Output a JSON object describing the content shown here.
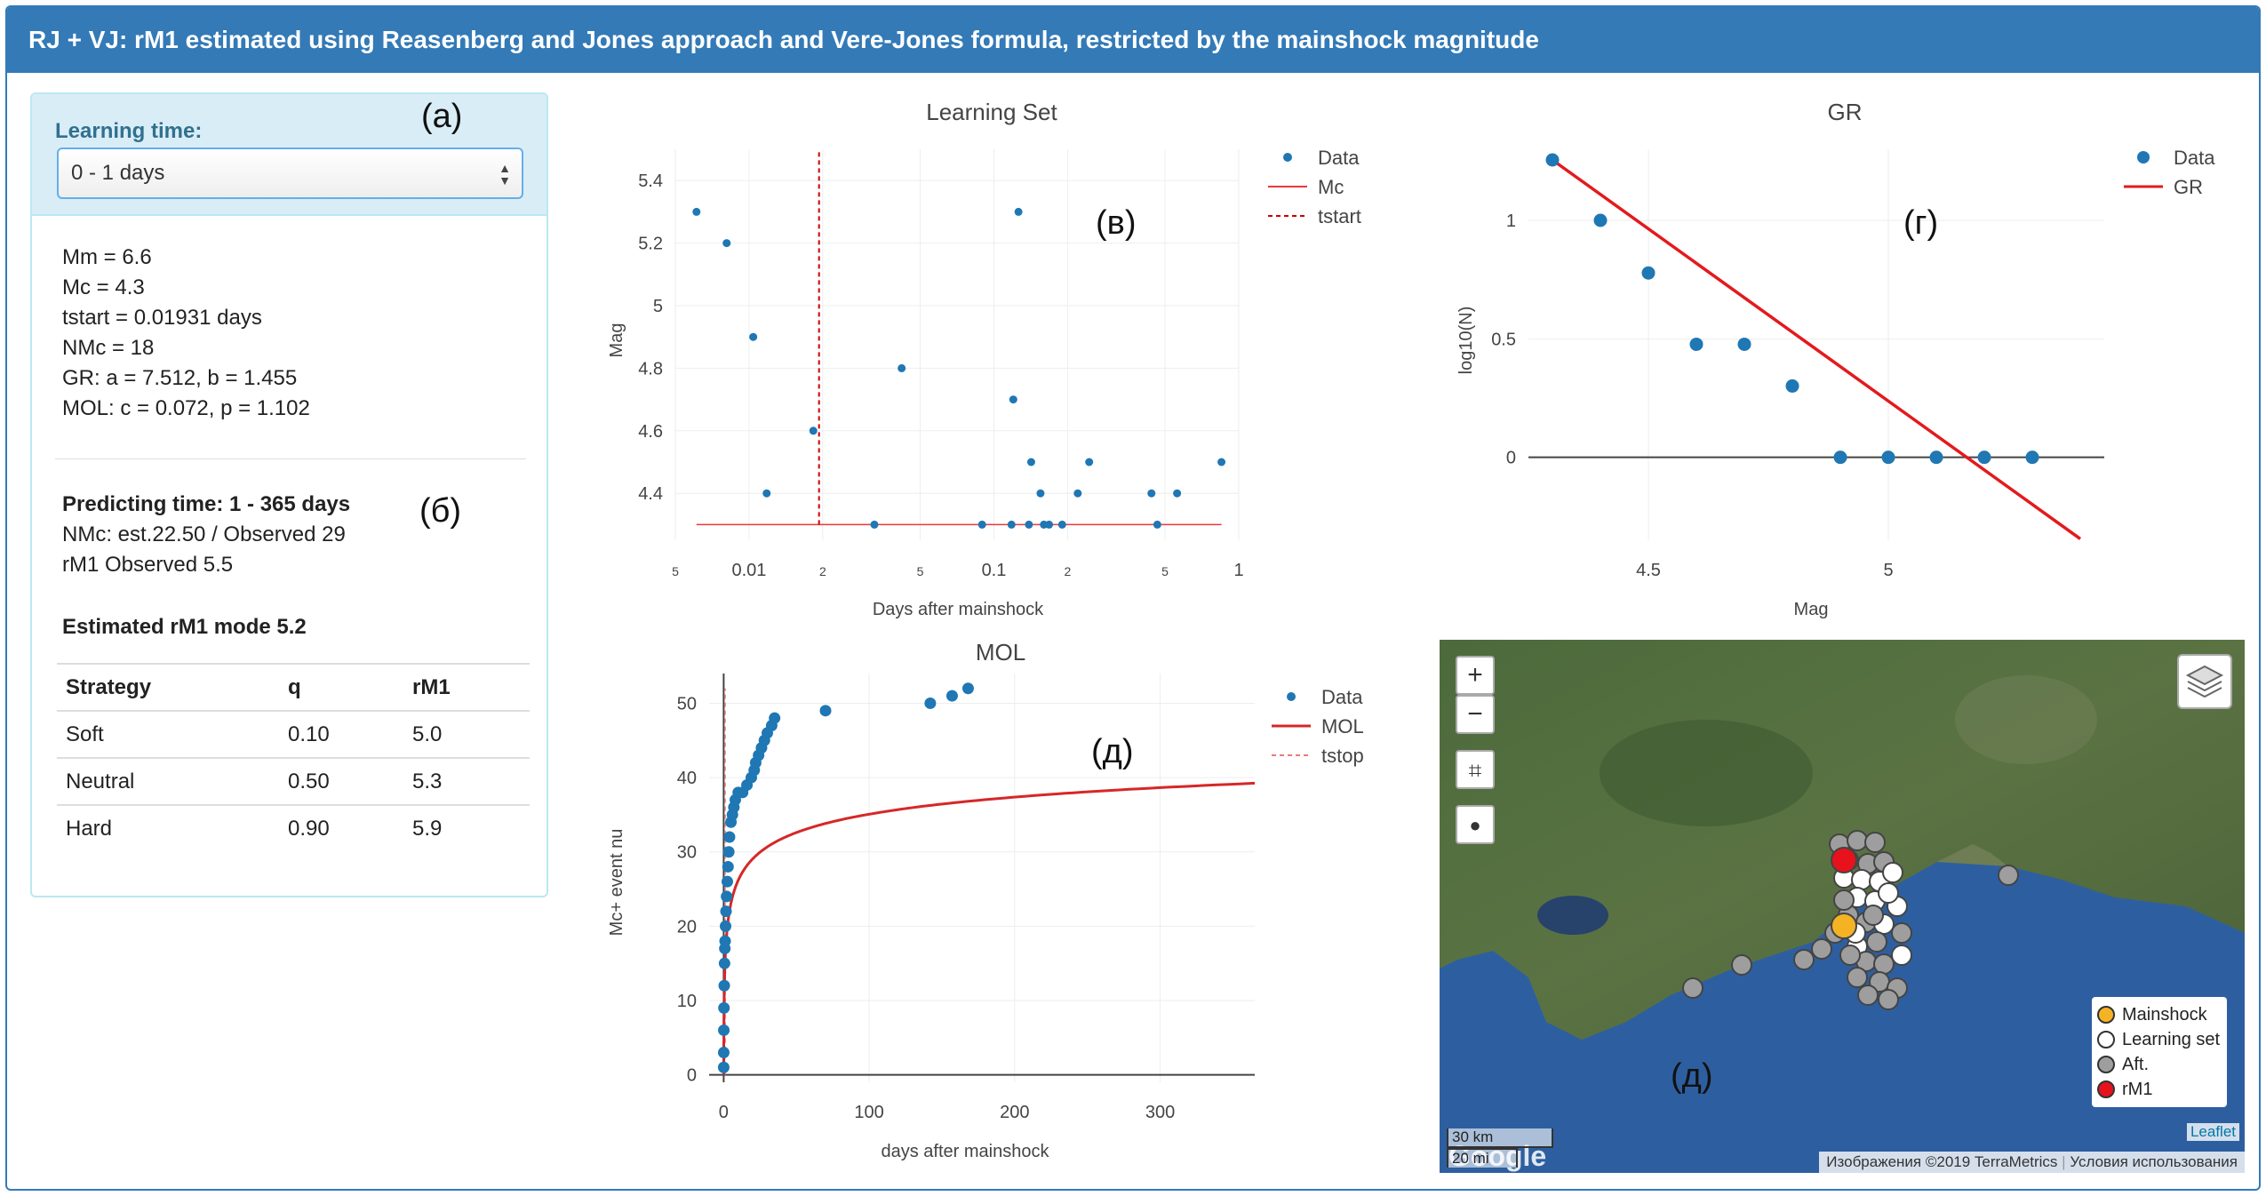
{
  "header": {
    "title": "RJ + VJ: rM1 estimated using Reasenberg and Jones approach and Vere-Jones formula, restricted by the mainshock magnitude"
  },
  "learning": {
    "label": "Learning time:",
    "selected": "0 - 1 days"
  },
  "annotations": {
    "a": "(а)",
    "b": "(б)",
    "v": "(в)",
    "g": "(г)",
    "d1": "(д)",
    "d2": "(д)"
  },
  "stats": {
    "mm": "Mm = 6.6",
    "mc": "Mc = 4.3",
    "tstart": "tstart = 0.01931 days",
    "nmc": "NMc = 18",
    "gr": "GR: a = 7.512, b = 1.455",
    "mol": "MOL: c = 0.072, p = 1.102"
  },
  "predicting": {
    "title": "Predicting time: 1 - 365 days",
    "nmc": "NMc: est.22.50 / Observed 29",
    "rm1": "rM1 Observed 5.5",
    "estimated": "Estimated rM1 mode 5.2"
  },
  "table": {
    "headers": [
      "Strategy",
      "q",
      "rM1"
    ],
    "rows": [
      [
        "Soft",
        "0.10",
        "5.0"
      ],
      [
        "Neutral",
        "0.50",
        "5.3"
      ],
      [
        "Hard",
        "0.90",
        "5.9"
      ]
    ]
  },
  "chart_data": [
    {
      "type": "scatter",
      "title": "Learning Set",
      "xlabel": "Days after mainshock",
      "ylabel": "Mag",
      "xscale": "log",
      "xlim": [
        0.005,
        1
      ],
      "ylim": [
        4.25,
        5.5
      ],
      "xticks": [
        {
          "v": 0.005,
          "label": "5"
        },
        {
          "v": 0.01,
          "label": "0.01"
        },
        {
          "v": 0.02,
          "label": "2"
        },
        {
          "v": 0.05,
          "label": "5"
        },
        {
          "v": 0.1,
          "label": "0.1"
        },
        {
          "v": 0.2,
          "label": "2"
        },
        {
          "v": 0.5,
          "label": "5"
        },
        {
          "v": 1,
          "label": "1"
        }
      ],
      "yticks": [
        {
          "v": 4.4,
          "label": "4.4"
        },
        {
          "v": 4.6,
          "label": "4.6"
        },
        {
          "v": 4.8,
          "label": "4.8"
        },
        {
          "v": 5.0,
          "label": "5"
        },
        {
          "v": 5.2,
          "label": "5.2"
        },
        {
          "v": 5.4,
          "label": "5.4"
        }
      ],
      "legend": [
        "Data",
        "Mc",
        "tstart"
      ],
      "series": [
        {
          "name": "Data",
          "points": [
            [
              0.0061,
              5.3
            ],
            [
              0.0081,
              5.2
            ],
            [
              0.0104,
              4.9
            ],
            [
              0.0118,
              4.4
            ],
            [
              0.0183,
              4.6
            ],
            [
              0.0325,
              4.3
            ],
            [
              0.042,
              4.8
            ],
            [
              0.0895,
              4.3
            ],
            [
              0.118,
              4.3
            ],
            [
              0.12,
              4.7
            ],
            [
              0.126,
              5.3
            ],
            [
              0.139,
              4.3
            ],
            [
              0.142,
              4.5
            ],
            [
              0.155,
              4.4
            ],
            [
              0.16,
              4.3
            ],
            [
              0.168,
              4.3
            ],
            [
              0.19,
              4.3
            ],
            [
              0.22,
              4.4
            ],
            [
              0.245,
              4.5
            ],
            [
              0.44,
              4.4
            ],
            [
              0.465,
              4.3
            ],
            [
              0.56,
              4.4
            ],
            [
              0.85,
              4.5
            ]
          ]
        },
        {
          "name": "Mc",
          "points": [
            [
              0.0061,
              4.3
            ],
            [
              0.85,
              4.3
            ]
          ]
        },
        {
          "name": "tstart",
          "points": [
            [
              0.01931,
              4.3
            ],
            [
              0.01931,
              5.5
            ]
          ]
        }
      ],
      "colors": {
        "data": "#1f77b4",
        "mc": "#e8393a",
        "tstart": "#cc0000"
      }
    },
    {
      "type": "scatter",
      "title": "GR",
      "xlabel": "Mag",
      "ylabel": "log10(N)",
      "xlim": [
        4.25,
        5.45
      ],
      "ylim": [
        -0.35,
        1.3
      ],
      "xticks": [
        {
          "v": 4.5,
          "label": "4.5"
        },
        {
          "v": 5.0,
          "label": "5"
        }
      ],
      "yticks": [
        {
          "v": 0,
          "label": "0"
        },
        {
          "v": 0.5,
          "label": "0.5"
        },
        {
          "v": 1,
          "label": "1"
        }
      ],
      "legend": [
        "Data",
        "GR"
      ],
      "series": [
        {
          "name": "Data",
          "points": [
            [
              4.3,
              1.255
            ],
            [
              4.4,
              1.0
            ],
            [
              4.5,
              0.778
            ],
            [
              4.6,
              0.477
            ],
            [
              4.7,
              0.477
            ],
            [
              4.8,
              0.301
            ],
            [
              4.9,
              0
            ],
            [
              5.0,
              0
            ],
            [
              5.1,
              0
            ],
            [
              5.2,
              0
            ],
            [
              5.3,
              0
            ]
          ]
        },
        {
          "name": "GR",
          "points": [
            [
              4.3,
              1.255
            ],
            [
              5.4,
              -0.344
            ]
          ]
        }
      ],
      "colors": {
        "data": "#1f77b4",
        "gr": "#e31a1c"
      }
    },
    {
      "type": "line",
      "title": "MOL",
      "xlabel": "days after mainshock",
      "ylabel": "Mc+ event nu",
      "xlim": [
        -10,
        365
      ],
      "ylim": [
        -1,
        54
      ],
      "xticks": [
        {
          "v": 0,
          "label": "0"
        },
        {
          "v": 100,
          "label": "100"
        },
        {
          "v": 200,
          "label": "200"
        },
        {
          "v": 300,
          "label": "300"
        }
      ],
      "yticks": [
        {
          "v": 0,
          "label": "0"
        },
        {
          "v": 10,
          "label": "10"
        },
        {
          "v": 20,
          "label": "20"
        },
        {
          "v": 30,
          "label": "30"
        },
        {
          "v": 40,
          "label": "40"
        },
        {
          "v": 50,
          "label": "50"
        }
      ],
      "legend": [
        "Data",
        "MOL",
        "tstop"
      ],
      "mol": {
        "c": 0.072,
        "p": 1.102,
        "k": 5.5
      },
      "series": [
        {
          "name": "Data",
          "points": [
            [
              0.02,
              1
            ],
            [
              0.05,
              3
            ],
            [
              0.1,
              6
            ],
            [
              0.2,
              9
            ],
            [
              0.4,
              12
            ],
            [
              0.6,
              15
            ],
            [
              0.8,
              17
            ],
            [
              1,
              18
            ],
            [
              1.3,
              20
            ],
            [
              1.6,
              22
            ],
            [
              2,
              24
            ],
            [
              2.5,
              26
            ],
            [
              3,
              28
            ],
            [
              3.5,
              30
            ],
            [
              4,
              32
            ],
            [
              5,
              34
            ],
            [
              6,
              35
            ],
            [
              7,
              36
            ],
            [
              8,
              37
            ],
            [
              10,
              38
            ],
            [
              13,
              38
            ],
            [
              16,
              39
            ],
            [
              19,
              40
            ],
            [
              21,
              41
            ],
            [
              22,
              42
            ],
            [
              24,
              43
            ],
            [
              26,
              44
            ],
            [
              28,
              45
            ],
            [
              30,
              46
            ],
            [
              33,
              47
            ],
            [
              35,
              48
            ],
            [
              70,
              49
            ],
            [
              142,
              50
            ],
            [
              157,
              51
            ],
            [
              168,
              52
            ]
          ]
        },
        {
          "name": "MOL",
          "points": []
        },
        {
          "name": "tstop",
          "points": [
            [
              1,
              0
            ],
            [
              1,
              52
            ]
          ]
        }
      ],
      "colors": {
        "data": "#1f77b4",
        "mol": "#d62728",
        "tstop": "#e87b7b"
      }
    }
  ],
  "map": {
    "zoom_in": "+",
    "zoom_out": "−",
    "crop_icon": "crop-icon",
    "globe_icon": "globe-icon",
    "layers_icon": "layers-icon",
    "legend": [
      {
        "label": "Mainshock",
        "color": "#f5b324"
      },
      {
        "label": "Learning set",
        "color": "#ffffff"
      },
      {
        "label": "Aft.",
        "color": "#9e9e9e"
      },
      {
        "label": "rM1",
        "color": "#e8121c"
      }
    ],
    "scale_km": "30 km",
    "scale_mi": "20 mi",
    "google": "Google",
    "leaflet": "Leaflet",
    "attribution_img": "Изображения ©2019 TerraMetrics",
    "attribution_terms": "Условия использования"
  }
}
